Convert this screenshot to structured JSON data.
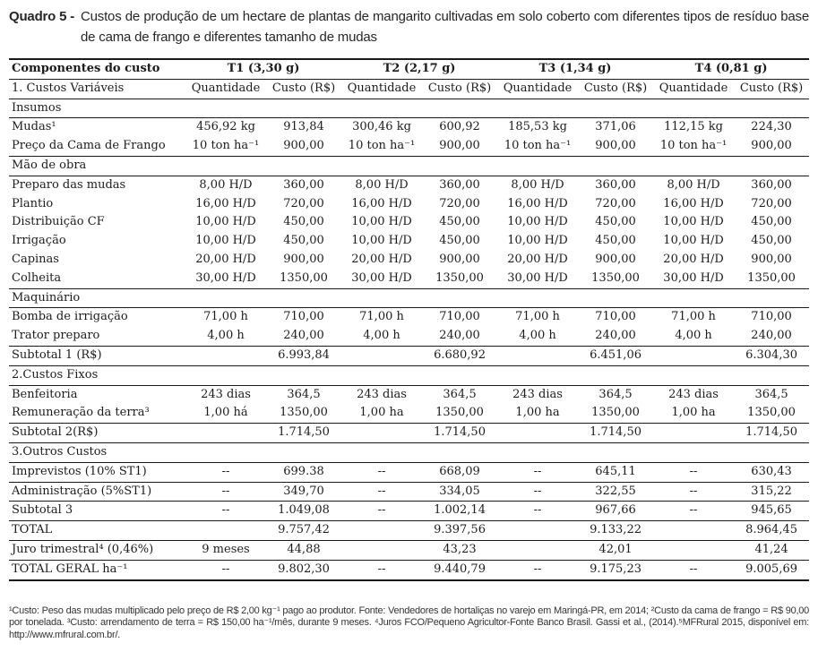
{
  "title": {
    "label": "Quadro 5 -",
    "text": "Custos de produção de um hectare de plantas de mangarito cultivadas em solo coberto com diferentes tipos de resíduo base de cama de frango e diferentes tamanho de mudas"
  },
  "table": {
    "header_row1": {
      "col0": "Componentes do custo",
      "groups": [
        "T1 (3,30 g)",
        "T2 (2,17 g)",
        "T3 (1,34 g)",
        "T4 (0,81 g)"
      ]
    },
    "header_row2": {
      "col0": "1. Custos Variáveis",
      "labels": [
        "Quantidade",
        "Custo (R$)",
        "Quantidade",
        "Custo (R$)",
        "Quantidade",
        "Custo (R$)",
        "Quantidade",
        "Custo (R$)"
      ]
    },
    "rows": [
      {
        "type": "section",
        "label": "Insumos",
        "bb": true
      },
      {
        "type": "data",
        "label": "Mudas¹",
        "cells": [
          "456,92 kg",
          "913,84",
          "300,46 kg",
          "600,92",
          "185,53 kg",
          "371,06",
          "112,15 kg",
          "224,30"
        ],
        "bb": false
      },
      {
        "type": "data",
        "label": "Preço da Cama de Frango",
        "cells": [
          "10 ton ha⁻¹",
          "900,00",
          "10 ton ha⁻¹",
          "900,00",
          "10 ton ha⁻¹",
          "900,00",
          "10 ton ha⁻¹",
          "900,00"
        ],
        "bb": true
      },
      {
        "type": "section",
        "label": "Mão de obra",
        "bb": true
      },
      {
        "type": "data",
        "label": "Preparo das mudas",
        "cells": [
          "8,00 H/D",
          "360,00",
          "8,00 H/D",
          "360,00",
          "8,00 H/D",
          "360,00",
          "8,00 H/D",
          "360,00"
        ],
        "bb": false
      },
      {
        "type": "data",
        "label": "Plantio",
        "cells": [
          "16,00 H/D",
          "720,00",
          "16,00 H/D",
          "720,00",
          "16,00 H/D",
          "720,00",
          "16,00 H/D",
          "720,00"
        ],
        "bb": false
      },
      {
        "type": "data",
        "label": "Distribuição CF",
        "cells": [
          "10,00 H/D",
          "450,00",
          "10,00 H/D",
          "450,00",
          "10,00 H/D",
          "450,00",
          "10,00 H/D",
          "450,00"
        ],
        "bb": false
      },
      {
        "type": "data",
        "label": "Irrigação",
        "cells": [
          "10,00 H/D",
          "450,00",
          "10,00 H/D",
          "450,00",
          "10,00 H/D",
          "450,00",
          "10,00 H/D",
          "450,00"
        ],
        "bb": false
      },
      {
        "type": "data",
        "label": "Capinas",
        "cells": [
          "20,00 H/D",
          "900,00",
          "20,00 H/D",
          "900,00",
          "20,00 H/D",
          "900,00",
          "20,00 H/D",
          "900,00"
        ],
        "bb": false
      },
      {
        "type": "data",
        "label": "Colheita",
        "cells": [
          "30,00 H/D",
          "1350,00",
          "30,00 H/D",
          "1350,00",
          "30,00 H/D",
          "1350,00",
          "30,00 H/D",
          "1350,00"
        ],
        "bb": true
      },
      {
        "type": "section",
        "label": "Maquinário",
        "bb": true
      },
      {
        "type": "data",
        "label": "Bomba de irrigação",
        "cells": [
          "71,00 h",
          "710,00",
          "71,00 h",
          "710,00",
          "71,00 h",
          "710,00",
          "71,00 h",
          "710,00"
        ],
        "bb": false
      },
      {
        "type": "data",
        "label": "Trator preparo",
        "cells": [
          "4,00 h",
          "240,00",
          "4,00 h",
          "240,00",
          "4,00 h",
          "240,00",
          "4,00 h",
          "240,00"
        ],
        "bb": true
      },
      {
        "type": "data",
        "label": "Subtotal 1 (R$)",
        "cells": [
          "",
          "6.993,84",
          "",
          "6.680,92",
          "",
          "6.451,06",
          "",
          "6.304,30"
        ],
        "bb": true
      },
      {
        "type": "section",
        "label": "2.Custos Fixos",
        "bb": true
      },
      {
        "type": "data",
        "label": "Benfeitoria",
        "cells": [
          "243 dias",
          "364,5",
          "243 dias",
          "364,5",
          "243 dias",
          "364,5",
          "243 dias",
          "364,5"
        ],
        "bb": false
      },
      {
        "type": "data",
        "label": "Remuneração da terra³",
        "cells": [
          "1,00 há",
          "1350,00",
          "1,00 ha",
          "1350,00",
          "1,00 ha",
          "1350,00",
          "1,00 ha",
          "1350,00"
        ],
        "bb": true
      },
      {
        "type": "data",
        "label": "Subtotal 2(R$)",
        "cells": [
          "",
          "1.714,50",
          "",
          "1.714,50",
          "",
          "1.714,50",
          "",
          "1.714,50"
        ],
        "bb": true
      },
      {
        "type": "section",
        "label": "3.Outros Custos",
        "bb": true
      },
      {
        "type": "data",
        "label": "Imprevistos (10% ST1)",
        "cells": [
          "--",
          "699.38",
          "--",
          "668,09",
          "--",
          "645,11",
          "--",
          "630,43"
        ],
        "bb": true
      },
      {
        "type": "data",
        "label": "Administração (5%ST1)",
        "cells": [
          "--",
          "349,70",
          "--",
          "334,05",
          "--",
          "322,55",
          "--",
          "315,22"
        ],
        "bb": true
      },
      {
        "type": "data",
        "label": "Subtotal 3",
        "cells": [
          "--",
          "1.049,08",
          "--",
          "1.002,14",
          "--",
          "967,66",
          "--",
          "945,65"
        ],
        "bb": true
      },
      {
        "type": "data",
        "label": "TOTAL",
        "cells": [
          "",
          "9.757,42",
          "",
          "9.397,56",
          "",
          "9.133,22",
          "",
          "8.964,45"
        ],
        "bb": true
      },
      {
        "type": "data",
        "label": "Juro trimestral⁴ (0,46%)",
        "cells": [
          "9 meses",
          "44,88",
          "",
          "43,23",
          "",
          "42,01",
          "",
          "41,24"
        ],
        "bb": true
      },
      {
        "type": "data",
        "label": "TOTAL GERAL ha⁻¹",
        "cells": [
          "--",
          "9.802,30",
          "--",
          "9.440,79",
          "--",
          "9.175,23",
          "--",
          "9.005,69"
        ],
        "bb": true,
        "last": true
      }
    ]
  },
  "footnotes": {
    "text": "¹Custo: Peso das mudas multiplicado pelo preço de R$ 2,00 kg⁻¹ pago ao produtor. Fonte: Vendedores de hortaliças no varejo em Maringá-PR, em 2014; ²Custo da cama de frango = R$ 90,00 por tonelada. ³Custo: arrendamento de terra = R$ 150,00 ha⁻¹/mês, durante 9 meses.  ⁴Juros FCO/Pequeno Agricultor-Fonte Banco Brasil. Gassi et al., (2014).⁵MFRural 2015, disponível em: http://www.mfrural.com.br/."
  }
}
